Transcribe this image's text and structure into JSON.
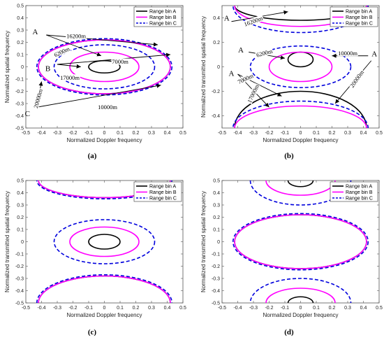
{
  "colors": {
    "A": "#000000",
    "B": "#ff00ff",
    "C": "#0000dd"
  },
  "chart_data": [
    {
      "type": "line",
      "panel_label": "(a)",
      "xlabel": "Normalized Doppler frequency",
      "ylabel": "Normalized spatial frequency",
      "xlim": [
        -0.5,
        0.5
      ],
      "ylim": [
        -0.5,
        0.5
      ],
      "xticks": [
        "-0.5",
        "-0.4",
        "-0.3",
        "-0.2",
        "-0.1",
        "0",
        "0.1",
        "0.2",
        "0.3",
        "0.4",
        "0.5"
      ],
      "yticks": [
        "0.5",
        "0.4",
        "0.3",
        "0.2",
        "0.1",
        "0",
        "-0.1",
        "-0.2",
        "-0.3",
        "-0.4",
        "-0.5"
      ],
      "legend": [
        "Range bin A",
        "Range bin B",
        "Range bin C"
      ],
      "series": [
        {
          "name": "Range bin A",
          "ellipses": [
            {
              "cx": 0,
              "cy": 0,
              "rx": 0.42,
              "ry": 0.22
            },
            {
              "cx": 0,
              "cy": 0,
              "rx": 0.1,
              "ry": 0.05
            }
          ]
        },
        {
          "name": "Range bin B",
          "ellipses": [
            {
              "cx": 0,
              "cy": 0,
              "rx": 0.42,
              "ry": 0.22
            },
            {
              "cx": 0,
              "cy": 0,
              "rx": 0.22,
              "ry": 0.12
            }
          ]
        },
        {
          "name": "Range bin C",
          "ellipses": [
            {
              "cx": 0,
              "cy": 0,
              "rx": 0.43,
              "ry": 0.23
            },
            {
              "cx": 0,
              "cy": 0,
              "rx": 0.32,
              "ry": 0.18
            }
          ]
        }
      ],
      "annotations": [
        {
          "text": "A",
          "x": -0.44,
          "y": 0.29,
          "letter": true
        },
        {
          "text": "B",
          "x": -0.36,
          "y": -0.01,
          "letter": true
        },
        {
          "text": "C",
          "x": -0.49,
          "y": -0.38,
          "letter": true
        },
        {
          "text": "16200m",
          "x": -0.18,
          "y": 0.25,
          "rot": 0
        },
        {
          "text": "6200m",
          "x": -0.27,
          "y": 0.12,
          "rot": -25
        },
        {
          "text": "7000m",
          "x": 0.1,
          "y": 0.04,
          "rot": 0
        },
        {
          "text": "17000m",
          "x": -0.22,
          "y": -0.09,
          "rot": 0
        },
        {
          "text": "20000m",
          "x": -0.42,
          "y": -0.26,
          "rot": -75
        },
        {
          "text": "10000m",
          "x": 0.02,
          "y": -0.33,
          "rot": 0
        }
      ],
      "arrows": [
        {
          "x1": -0.37,
          "y1": 0.26,
          "x2": 0.34,
          "y2": 0.18
        },
        {
          "x1": -0.37,
          "y1": 0.26,
          "x2": -0.02,
          "y2": 0.09
        },
        {
          "x1": -0.3,
          "y1": 0.02,
          "x2": 0.42,
          "y2": 0.1
        },
        {
          "x1": -0.3,
          "y1": 0.02,
          "x2": -0.15,
          "y2": 0.0
        },
        {
          "x1": -0.43,
          "y1": -0.33,
          "x2": -0.4,
          "y2": -0.12
        },
        {
          "x1": -0.43,
          "y1": -0.33,
          "x2": 0.36,
          "y2": -0.15
        }
      ]
    },
    {
      "type": "line",
      "panel_label": "(b)",
      "xlabel": "Normalized Doppler frequency",
      "ylabel": "Normalized transmitted spatial frequency",
      "xlim": [
        -0.5,
        0.5
      ],
      "ylim": [
        -0.5,
        0.5
      ],
      "xticks": [
        "-0.5",
        "-0.4",
        "-0.3",
        "-0.2",
        "-0.1",
        "0",
        "0.1",
        "0.2",
        "0.3",
        "0.4",
        "0.5"
      ],
      "yticks": [
        "0.4",
        "0.2",
        "0",
        "-0.2",
        "-0.4"
      ],
      "legend": [
        "Range bin A",
        "Range bin B",
        "Range bin C"
      ],
      "series": [
        {
          "name": "Range bin A",
          "ellipses": [
            {
              "cx": 0,
              "cy": 0.5,
              "rx": 0.42,
              "ry": 0.12
            },
            {
              "cx": 0,
              "cy": 0.06,
              "rx": 0.08,
              "ry": 0.06
            },
            {
              "cx": 0,
              "cy": -0.5,
              "rx": 0.42,
              "ry": 0.3
            }
          ]
        },
        {
          "name": "Range bin B",
          "ellipses": [
            {
              "cx": 0,
              "cy": 0.5,
              "rx": 0.42,
              "ry": 0.17
            },
            {
              "cx": 0,
              "cy": 0,
              "rx": 0.2,
              "ry": 0.12
            },
            {
              "cx": 0,
              "cy": -0.5,
              "rx": 0.42,
              "ry": 0.18
            }
          ]
        },
        {
          "name": "Range bin C",
          "ellipses": [
            {
              "cx": 0,
              "cy": 0.5,
              "rx": 0.43,
              "ry": 0.22
            },
            {
              "cx": 0,
              "cy": 0,
              "rx": 0.32,
              "ry": 0.17
            },
            {
              "cx": 0,
              "cy": -0.5,
              "rx": 0.43,
              "ry": 0.22
            }
          ]
        }
      ],
      "annotations": [
        {
          "text": "A",
          "x": -0.47,
          "y": 0.4,
          "letter": true
        },
        {
          "text": "A",
          "x": -0.38,
          "y": 0.14,
          "letter": true
        },
        {
          "text": "A",
          "x": 0.47,
          "y": 0.11,
          "letter": true
        },
        {
          "text": "A",
          "x": -0.44,
          "y": -0.05,
          "letter": true
        },
        {
          "text": "16200m",
          "x": -0.3,
          "y": 0.37,
          "rot": -20
        },
        {
          "text": "6200m",
          "x": -0.23,
          "y": 0.11,
          "rot": -15
        },
        {
          "text": "10000m",
          "x": 0.3,
          "y": 0.11,
          "rot": 0
        },
        {
          "text": "7000m",
          "x": -0.35,
          "y": -0.1,
          "rot": -25
        },
        {
          "text": "17000m",
          "x": -0.3,
          "y": -0.22,
          "rot": -65
        },
        {
          "text": "20000m",
          "x": 0.36,
          "y": -0.1,
          "rot": -55
        }
      ],
      "arrows": [
        {
          "x1": -0.44,
          "y1": 0.37,
          "x2": -0.08,
          "y2": 0.45
        },
        {
          "x1": -0.33,
          "y1": 0.12,
          "x2": -0.1,
          "y2": 0.07
        },
        {
          "x1": 0.43,
          "y1": 0.09,
          "x2": 0.2,
          "y2": 0.09
        },
        {
          "x1": -0.4,
          "y1": -0.06,
          "x2": -0.12,
          "y2": -0.24
        },
        {
          "x1": -0.4,
          "y1": -0.06,
          "x2": -0.2,
          "y2": -0.33
        },
        {
          "x1": 0.45,
          "y1": 0.05,
          "x2": 0.22,
          "y2": -0.3
        }
      ]
    },
    {
      "type": "line",
      "panel_label": "(c)",
      "xlabel": "Normalized Doppler frequency",
      "ylabel": "Normalized transmitted spatial frequency",
      "xlim": [
        -0.5,
        0.5
      ],
      "ylim": [
        -0.5,
        0.5
      ],
      "xticks": [
        "-0.5",
        "-0.4",
        "-0.3",
        "-0.2",
        "-0.1",
        "0",
        "0.1",
        "0.2",
        "0.3",
        "0.4",
        "0.5"
      ],
      "yticks": [
        "0.5",
        "0.4",
        "0.3",
        "0.2",
        "0.1",
        "0",
        "-0.1",
        "-0.2",
        "-0.3",
        "-0.4",
        "-0.5"
      ],
      "legend": [
        "Range bin A",
        "Range bin B",
        "Range bin C"
      ],
      "series": [
        {
          "name": "Range bin A",
          "ellipses": [
            {
              "cx": 0,
              "cy": 0.5,
              "rx": 0.42,
              "ry": 0.14
            },
            {
              "cx": 0,
              "cy": 0,
              "rx": 0.1,
              "ry": 0.06
            },
            {
              "cx": 0,
              "cy": -0.5,
              "rx": 0.42,
              "ry": 0.22
            }
          ]
        },
        {
          "name": "Range bin B",
          "ellipses": [
            {
              "cx": 0,
              "cy": 0.5,
              "rx": 0.42,
              "ry": 0.14
            },
            {
              "cx": 0,
              "cy": 0,
              "rx": 0.22,
              "ry": 0.12
            },
            {
              "cx": 0,
              "cy": -0.5,
              "rx": 0.42,
              "ry": 0.22
            }
          ]
        },
        {
          "name": "Range bin C",
          "ellipses": [
            {
              "cx": 0,
              "cy": 0.5,
              "rx": 0.43,
              "ry": 0.15
            },
            {
              "cx": 0,
              "cy": 0,
              "rx": 0.32,
              "ry": 0.18
            },
            {
              "cx": 0,
              "cy": -0.5,
              "rx": 0.43,
              "ry": 0.23
            }
          ]
        }
      ]
    },
    {
      "type": "line",
      "panel_label": "(d)",
      "xlabel": "Normalized Doppler frequency",
      "ylabel": "Normalized transmitted spatial frequency",
      "xlim": [
        -0.5,
        0.5
      ],
      "ylim": [
        -0.5,
        0.5
      ],
      "xticks": [
        "-0.5",
        "-0.4",
        "-0.3",
        "-0.2",
        "-0.1",
        "0",
        "0.1",
        "0.2",
        "0.3",
        "0.4",
        "0.5"
      ],
      "yticks": [
        "0.5",
        "0.4",
        "0.3",
        "0.2",
        "0.1",
        "0",
        "-0.1",
        "-0.2",
        "-0.3",
        "-0.4",
        "-0.5"
      ],
      "legend": [
        "Range bin A",
        "Range bin B",
        "Range bin C"
      ],
      "series": [
        {
          "name": "Range bin A",
          "ellipses": [
            {
              "cx": 0,
              "cy": 0.5,
              "rx": 0.08,
              "ry": 0.05
            },
            {
              "cx": 0,
              "cy": 0,
              "rx": 0.42,
              "ry": 0.22
            },
            {
              "cx": 0,
              "cy": -0.5,
              "rx": 0.08,
              "ry": 0.05
            }
          ]
        },
        {
          "name": "Range bin B",
          "ellipses": [
            {
              "cx": 0,
              "cy": 0.5,
              "rx": 0.22,
              "ry": 0.12
            },
            {
              "cx": 0,
              "cy": 0,
              "rx": 0.42,
              "ry": 0.22
            },
            {
              "cx": 0,
              "cy": -0.5,
              "rx": 0.22,
              "ry": 0.12
            }
          ]
        },
        {
          "name": "Range bin C",
          "ellipses": [
            {
              "cx": 0,
              "cy": 0.5,
              "rx": 0.32,
              "ry": 0.2
            },
            {
              "cx": 0,
              "cy": 0,
              "rx": 0.43,
              "ry": 0.23
            },
            {
              "cx": 0,
              "cy": -0.5,
              "rx": 0.32,
              "ry": 0.2
            }
          ]
        }
      ]
    }
  ]
}
